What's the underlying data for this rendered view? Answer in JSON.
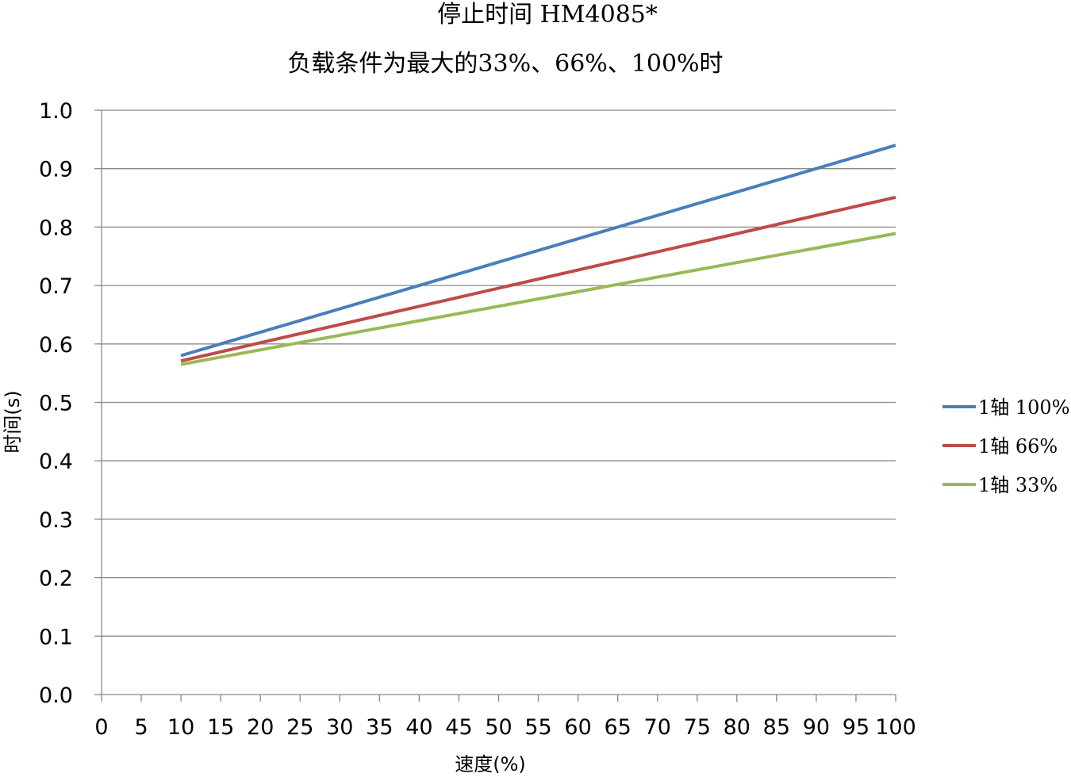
{
  "chart_data": {
    "type": "line",
    "title": "停止时间 HM4085*",
    "subtitle": "负载条件为最大的33%、66%、100%时",
    "xlabel": "速度(%)",
    "ylabel": "时间(s)",
    "xlim": [
      0,
      100
    ],
    "ylim": [
      0,
      1.0
    ],
    "x_ticks": [
      "0",
      "5",
      "10",
      "15",
      "20",
      "25",
      "30",
      "35",
      "40",
      "45",
      "50",
      "55",
      "60",
      "65",
      "70",
      "75",
      "80",
      "85",
      "90",
      "95",
      "100"
    ],
    "y_ticks": [
      "0.0",
      "0.1",
      "0.2",
      "0.3",
      "0.4",
      "0.5",
      "0.6",
      "0.7",
      "0.8",
      "0.9",
      "1.0"
    ],
    "grid": true,
    "legend_position": "right",
    "x": [
      10,
      100
    ],
    "series": [
      {
        "name": "1轴 100%",
        "color": "#4a7ebb",
        "values": [
          0.58,
          0.94
        ]
      },
      {
        "name": "1轴 66%",
        "color": "#be4b48",
        "values": [
          0.571,
          0.851
        ]
      },
      {
        "name": "1轴 33%",
        "color": "#98b954",
        "values": [
          0.565,
          0.789
        ]
      }
    ]
  }
}
